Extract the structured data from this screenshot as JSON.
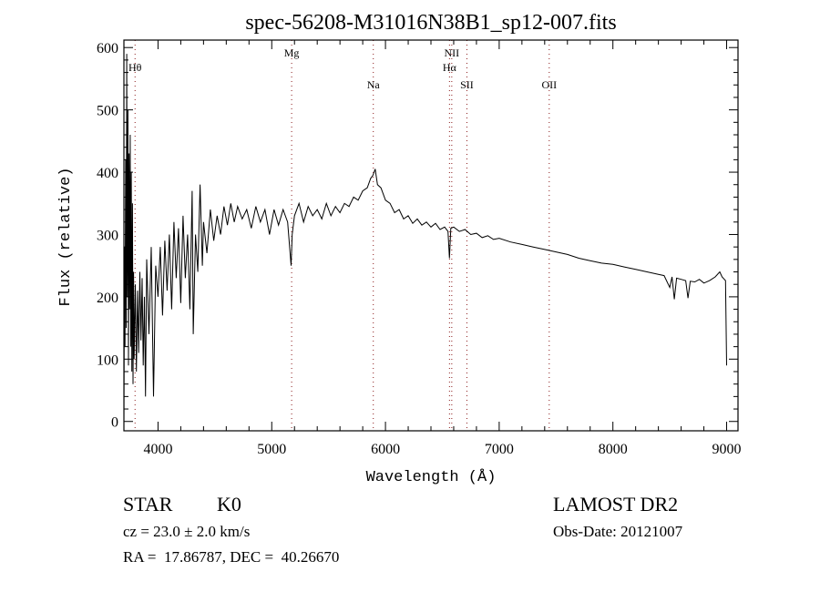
{
  "chart_data": {
    "type": "line",
    "title": "spec-56208-M31016N38B1_sp12-007.fits",
    "xlabel": "Wavelength (Å)",
    "ylabel": "Flux (relative)",
    "xlim": [
      3700,
      9100
    ],
    "ylim": [
      -15,
      612
    ],
    "xticks": [
      4000,
      5000,
      6000,
      7000,
      8000,
      9000
    ],
    "yticks": [
      0,
      100,
      200,
      300,
      400,
      500,
      600
    ],
    "grid": false,
    "lines": [
      {
        "label": "Hθ",
        "x": 3798,
        "row": 2
      },
      {
        "label": "Mg",
        "x": 5175,
        "row": 1
      },
      {
        "label": "Na",
        "x": 5893,
        "row": 3
      },
      {
        "label": "NII",
        "x": 6583,
        "row": 1
      },
      {
        "label": "Hα",
        "x": 6563,
        "row": 2
      },
      {
        "label": "SII",
        "x": 6716,
        "row": 3
      },
      {
        "label": "OII",
        "x": 7440,
        "row": 3
      }
    ],
    "series": [
      {
        "name": "spectrum",
        "points": [
          [
            3700,
            0
          ],
          [
            3705,
            280
          ],
          [
            3710,
            120
          ],
          [
            3715,
            420
          ],
          [
            3720,
            150
          ],
          [
            3725,
            590
          ],
          [
            3730,
            200
          ],
          [
            3735,
            500
          ],
          [
            3740,
            90
          ],
          [
            3745,
            430
          ],
          [
            3750,
            180
          ],
          [
            3755,
            460
          ],
          [
            3760,
            120
          ],
          [
            3765,
            400
          ],
          [
            3770,
            80
          ],
          [
            3775,
            350
          ],
          [
            3780,
            60
          ],
          [
            3785,
            240
          ],
          [
            3790,
            100
          ],
          [
            3800,
            220
          ],
          [
            3810,
            80
          ],
          [
            3820,
            210
          ],
          [
            3830,
            110
          ],
          [
            3840,
            240
          ],
          [
            3850,
            130
          ],
          [
            3860,
            230
          ],
          [
            3870,
            90
          ],
          [
            3880,
            200
          ],
          [
            3890,
            40
          ],
          [
            3900,
            260
          ],
          [
            3920,
            140
          ],
          [
            3940,
            280
          ],
          [
            3960,
            40
          ],
          [
            3980,
            250
          ],
          [
            4000,
            200
          ],
          [
            4020,
            280
          ],
          [
            4040,
            170
          ],
          [
            4060,
            290
          ],
          [
            4080,
            210
          ],
          [
            4100,
            300
          ],
          [
            4120,
            180
          ],
          [
            4140,
            320
          ],
          [
            4160,
            230
          ],
          [
            4180,
            310
          ],
          [
            4200,
            190
          ],
          [
            4220,
            330
          ],
          [
            4240,
            230
          ],
          [
            4260,
            300
          ],
          [
            4280,
            180
          ],
          [
            4300,
            370
          ],
          [
            4310,
            140
          ],
          [
            4330,
            300
          ],
          [
            4350,
            240
          ],
          [
            4370,
            380
          ],
          [
            4390,
            250
          ],
          [
            4400,
            320
          ],
          [
            4430,
            270
          ],
          [
            4460,
            340
          ],
          [
            4490,
            290
          ],
          [
            4520,
            330
          ],
          [
            4550,
            300
          ],
          [
            4580,
            345
          ],
          [
            4610,
            315
          ],
          [
            4640,
            350
          ],
          [
            4670,
            320
          ],
          [
            4700,
            345
          ],
          [
            4740,
            325
          ],
          [
            4780,
            340
          ],
          [
            4820,
            310
          ],
          [
            4860,
            345
          ],
          [
            4900,
            320
          ],
          [
            4940,
            340
          ],
          [
            4980,
            300
          ],
          [
            5020,
            340
          ],
          [
            5060,
            315
          ],
          [
            5100,
            340
          ],
          [
            5140,
            320
          ],
          [
            5170,
            250
          ],
          [
            5180,
            300
          ],
          [
            5200,
            330
          ],
          [
            5240,
            350
          ],
          [
            5280,
            320
          ],
          [
            5320,
            345
          ],
          [
            5360,
            330
          ],
          [
            5400,
            340
          ],
          [
            5440,
            325
          ],
          [
            5480,
            350
          ],
          [
            5520,
            330
          ],
          [
            5560,
            345
          ],
          [
            5600,
            335
          ],
          [
            5640,
            350
          ],
          [
            5680,
            345
          ],
          [
            5720,
            360
          ],
          [
            5760,
            355
          ],
          [
            5800,
            370
          ],
          [
            5840,
            375
          ],
          [
            5870,
            390
          ],
          [
            5890,
            395
          ],
          [
            5910,
            405
          ],
          [
            5930,
            380
          ],
          [
            5960,
            375
          ],
          [
            6000,
            355
          ],
          [
            6040,
            350
          ],
          [
            6080,
            335
          ],
          [
            6120,
            340
          ],
          [
            6160,
            325
          ],
          [
            6200,
            330
          ],
          [
            6240,
            318
          ],
          [
            6280,
            325
          ],
          [
            6320,
            315
          ],
          [
            6360,
            320
          ],
          [
            6400,
            312
          ],
          [
            6440,
            318
          ],
          [
            6480,
            308
          ],
          [
            6520,
            312
          ],
          [
            6550,
            305
          ],
          [
            6563,
            262
          ],
          [
            6575,
            310
          ],
          [
            6600,
            312
          ],
          [
            6650,
            305
          ],
          [
            6700,
            308
          ],
          [
            6750,
            300
          ],
          [
            6800,
            302
          ],
          [
            6850,
            295
          ],
          [
            6900,
            298
          ],
          [
            6950,
            292
          ],
          [
            7000,
            294
          ],
          [
            7100,
            288
          ],
          [
            7200,
            284
          ],
          [
            7300,
            280
          ],
          [
            7400,
            276
          ],
          [
            7500,
            272
          ],
          [
            7600,
            268
          ],
          [
            7700,
            262
          ],
          [
            7800,
            258
          ],
          [
            7900,
            254
          ],
          [
            8000,
            252
          ],
          [
            8100,
            248
          ],
          [
            8200,
            244
          ],
          [
            8300,
            240
          ],
          [
            8400,
            236
          ],
          [
            8450,
            234
          ],
          [
            8500,
            215
          ],
          [
            8520,
            232
          ],
          [
            8540,
            196
          ],
          [
            8560,
            230
          ],
          [
            8600,
            228
          ],
          [
            8640,
            226
          ],
          [
            8660,
            198
          ],
          [
            8680,
            225
          ],
          [
            8720,
            224
          ],
          [
            8760,
            228
          ],
          [
            8800,
            222
          ],
          [
            8850,
            226
          ],
          [
            8900,
            232
          ],
          [
            8940,
            240
          ],
          [
            8960,
            232
          ],
          [
            8980,
            228
          ],
          [
            8990,
            226
          ],
          [
            9000,
            90
          ]
        ]
      }
    ]
  },
  "footer": {
    "object_type": "STAR",
    "subclass": "K0",
    "survey": "LAMOST DR2",
    "redshift": "cz = 23.0 ± 2.0 km/s",
    "obs_date": "Obs-Date: 20121007",
    "coords": "RA =  17.86787, DEC =  40.26670"
  }
}
